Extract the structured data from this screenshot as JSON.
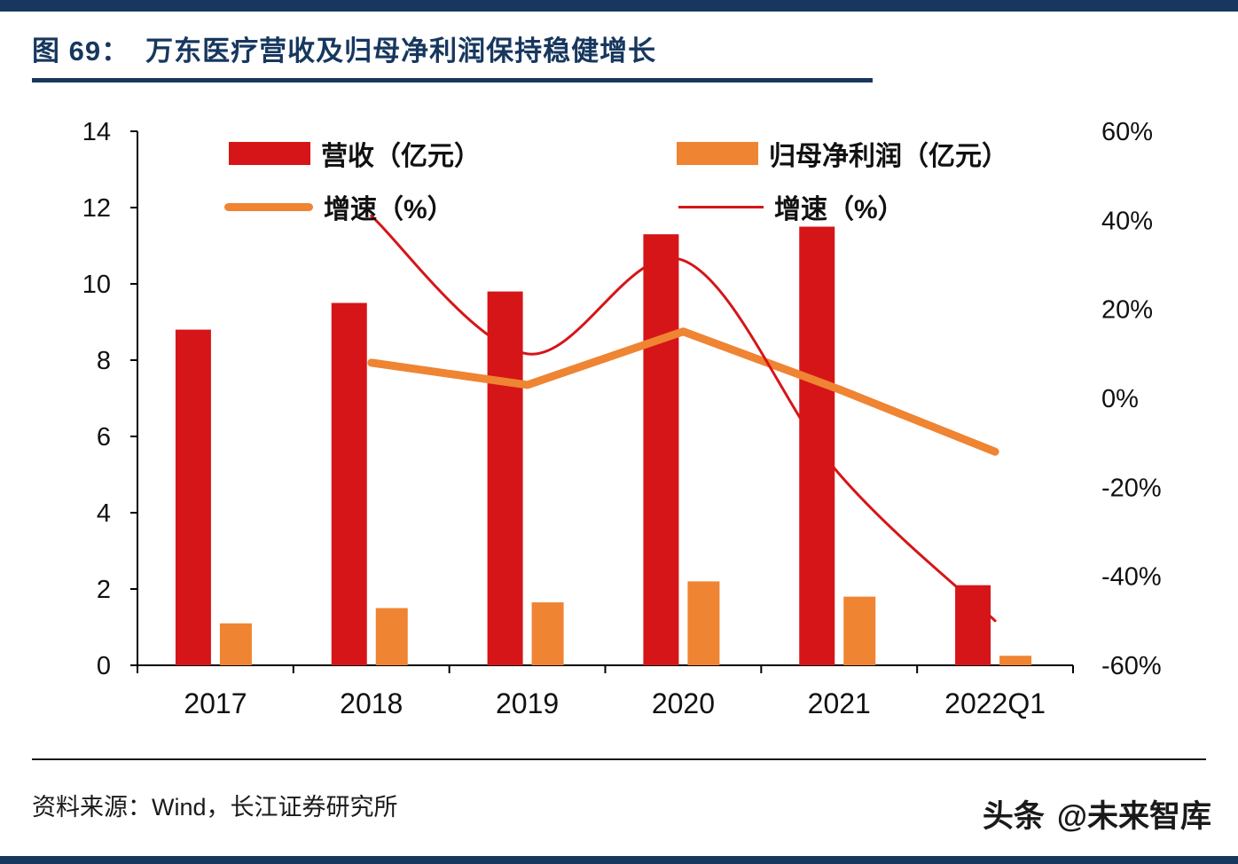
{
  "header": {
    "figure_label": "图 69：",
    "title": "万东医疗营收及归母净利润保持稳健增长"
  },
  "footer": {
    "source": "资料来源：Wind，长江证券研究所",
    "watermark_brand": "头条",
    "watermark_handle": "@未来智库"
  },
  "colors": {
    "navy": "#17375e",
    "red": "#d61518",
    "orange": "#ef8432",
    "axis_text": "#111111"
  },
  "chart_data": {
    "type": "bar",
    "subtype": "bar-line-combo",
    "title": "万东医疗营收及归母净利润保持稳健增长",
    "categories": [
      "2017",
      "2018",
      "2019",
      "2020",
      "2021",
      "2022Q1"
    ],
    "series": [
      {
        "name": "营收（亿元）",
        "type": "bar",
        "axis": "left",
        "color": "red",
        "values": [
          8.8,
          9.5,
          9.8,
          11.3,
          11.5,
          2.1
        ]
      },
      {
        "name": "归母净利润（亿元）",
        "type": "bar",
        "axis": "left",
        "color": "orange",
        "values": [
          1.1,
          1.5,
          1.65,
          2.2,
          1.8,
          0.25
        ]
      },
      {
        "name": "增速（%）",
        "type": "line",
        "axis": "right",
        "color": "orange",
        "line_width": 9,
        "smooth": false,
        "values": [
          null,
          8,
          3,
          15,
          2,
          -12
        ]
      },
      {
        "name": "增速（%）",
        "type": "line",
        "axis": "right",
        "color": "red",
        "line_width": 3,
        "smooth": true,
        "values": [
          null,
          41,
          10,
          31,
          -17,
          -50
        ]
      }
    ],
    "left_axis": {
      "min": 0,
      "max": 14,
      "tick_step": 2,
      "ticks": [
        0,
        2,
        4,
        6,
        8,
        10,
        12,
        14
      ]
    },
    "right_axis": {
      "min": -60,
      "max": 60,
      "tick_step": 20,
      "ticks": [
        60,
        40,
        20,
        0,
        -20,
        -40,
        -60
      ],
      "suffix": "%"
    },
    "grid": false,
    "legend_position": "top"
  }
}
